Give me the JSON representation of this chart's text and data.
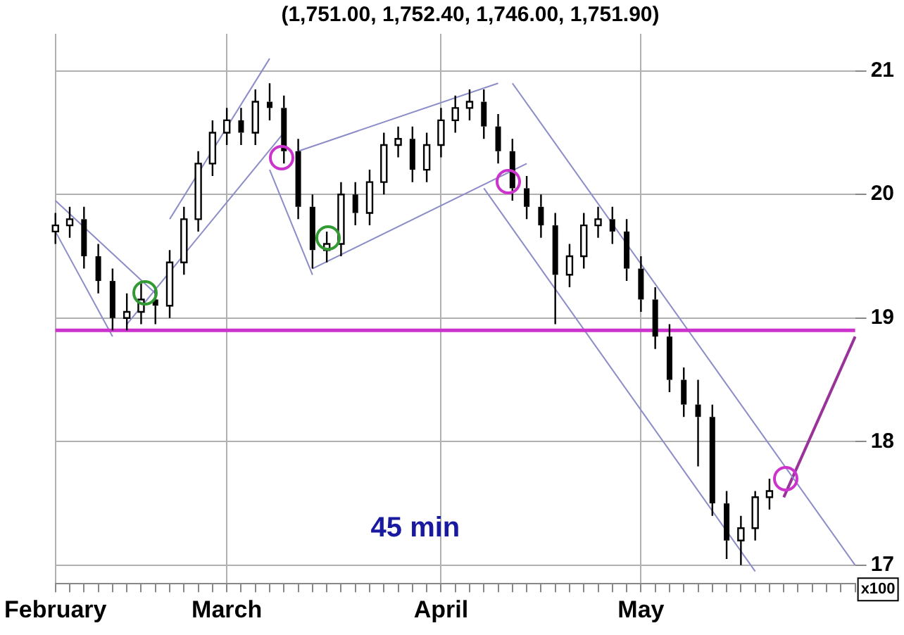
{
  "chart_data": {
    "type": "candlestick",
    "title": "(1,751.00, 1,752.40, 1,746.00, 1,751.90)",
    "categories": [
      "February",
      null,
      null,
      null,
      null,
      null,
      null,
      null,
      null,
      null,
      null,
      null,
      "March",
      null,
      null,
      null,
      null,
      null,
      null,
      null,
      null,
      null,
      null,
      null,
      null,
      null,
      null,
      "April",
      null,
      null,
      null,
      null,
      null,
      null,
      null,
      null,
      null,
      null,
      null,
      null,
      null,
      "May",
      null,
      null,
      null,
      null,
      null,
      null,
      null,
      null,
      null,
      null,
      null,
      null,
      null,
      null,
      null
    ],
    "ohlc": [
      [
        19.7,
        19.85,
        19.6,
        19.75
      ],
      [
        19.75,
        19.9,
        19.65,
        19.8
      ],
      [
        19.8,
        19.9,
        19.4,
        19.5
      ],
      [
        19.5,
        19.6,
        19.2,
        19.3
      ],
      [
        19.3,
        19.4,
        18.9,
        19.0
      ],
      [
        19.0,
        19.2,
        18.9,
        19.05
      ],
      [
        19.05,
        19.3,
        18.95,
        19.15
      ],
      [
        19.15,
        19.25,
        18.95,
        19.1
      ],
      [
        19.1,
        19.55,
        19.0,
        19.45
      ],
      [
        19.45,
        19.9,
        19.35,
        19.8
      ],
      [
        19.8,
        20.35,
        19.7,
        20.25
      ],
      [
        20.25,
        20.6,
        20.15,
        20.5
      ],
      [
        20.5,
        20.7,
        20.4,
        20.6
      ],
      [
        20.6,
        20.7,
        20.4,
        20.5
      ],
      [
        20.5,
        20.85,
        20.4,
        20.75
      ],
      [
        20.75,
        20.9,
        20.6,
        20.7
      ],
      [
        20.7,
        20.8,
        20.25,
        20.35
      ],
      [
        20.35,
        20.45,
        19.8,
        19.9
      ],
      [
        19.9,
        20.0,
        19.4,
        19.55
      ],
      [
        19.55,
        19.7,
        19.45,
        19.6
      ],
      [
        19.6,
        20.1,
        19.5,
        20.0
      ],
      [
        20.0,
        20.1,
        19.75,
        19.85
      ],
      [
        19.85,
        20.2,
        19.75,
        20.1
      ],
      [
        20.1,
        20.5,
        20.0,
        20.4
      ],
      [
        20.4,
        20.55,
        20.3,
        20.45
      ],
      [
        20.45,
        20.55,
        20.1,
        20.2
      ],
      [
        20.2,
        20.5,
        20.1,
        20.4
      ],
      [
        20.4,
        20.7,
        20.3,
        20.6
      ],
      [
        20.6,
        20.8,
        20.5,
        20.7
      ],
      [
        20.7,
        20.85,
        20.6,
        20.75
      ],
      [
        20.75,
        20.85,
        20.45,
        20.55
      ],
      [
        20.55,
        20.65,
        20.25,
        20.35
      ],
      [
        20.35,
        20.45,
        19.95,
        20.05
      ],
      [
        20.05,
        20.15,
        19.8,
        19.9
      ],
      [
        19.9,
        20.0,
        19.65,
        19.75
      ],
      [
        19.75,
        19.85,
        18.95,
        19.35
      ],
      [
        19.35,
        19.6,
        19.25,
        19.5
      ],
      [
        19.5,
        19.85,
        19.4,
        19.75
      ],
      [
        19.75,
        19.9,
        19.65,
        19.8
      ],
      [
        19.8,
        19.9,
        19.6,
        19.7
      ],
      [
        19.7,
        19.8,
        19.3,
        19.4
      ],
      [
        19.4,
        19.5,
        19.05,
        19.15
      ],
      [
        19.15,
        19.25,
        18.75,
        18.85
      ],
      [
        18.85,
        18.95,
        18.4,
        18.5
      ],
      [
        18.5,
        18.6,
        18.2,
        18.3
      ],
      [
        18.3,
        18.5,
        17.8,
        18.2
      ],
      [
        18.2,
        18.3,
        17.4,
        17.5
      ],
      [
        17.5,
        17.6,
        17.05,
        17.2
      ],
      [
        17.2,
        17.4,
        17.0,
        17.3
      ],
      [
        17.3,
        17.6,
        17.2,
        17.55
      ],
      [
        17.55,
        17.7,
        17.45,
        17.6
      ],
      null,
      null,
      null,
      null,
      null,
      null
    ],
    "series": [
      {
        "type": "line",
        "color": "#8c8cc8",
        "values": [
          19.95,
          null,
          null,
          null,
          null,
          null,
          null,
          19.2,
          null,
          null,
          null,
          null,
          null,
          null,
          null,
          null,
          null,
          null,
          null,
          null,
          null,
          null,
          null,
          null,
          null,
          null,
          null,
          null,
          null,
          null,
          null,
          null,
          null,
          null,
          null,
          null,
          null,
          null,
          null,
          null,
          null,
          null,
          null,
          null,
          null,
          null,
          null,
          null,
          null,
          null,
          null,
          null,
          null,
          null,
          null,
          null,
          null
        ]
      },
      {
        "type": "line",
        "color": "#8c8cc8",
        "values": [
          19.7,
          null,
          null,
          null,
          18.85,
          null,
          null,
          null,
          null,
          null,
          null,
          null,
          null,
          null,
          null,
          null,
          null,
          null,
          null,
          null,
          null,
          null,
          null,
          null,
          null,
          null,
          null,
          null,
          null,
          null,
          null,
          null,
          null,
          null,
          null,
          null,
          null,
          null,
          null,
          null,
          null,
          null,
          null,
          null,
          null,
          null,
          null,
          null,
          null,
          null,
          null,
          null,
          null,
          null,
          null,
          null,
          null
        ]
      },
      {
        "type": "line",
        "color": "#8c8cc8",
        "values": [
          null,
          null,
          null,
          null,
          null,
          null,
          null,
          null,
          19.8,
          null,
          null,
          null,
          null,
          null,
          null,
          21.1,
          null,
          null,
          null,
          null,
          null,
          null,
          null,
          null,
          null,
          null,
          null,
          null,
          null,
          null,
          null,
          null,
          null,
          null,
          null,
          null,
          null,
          null,
          null,
          null,
          null,
          null,
          null,
          null,
          null,
          null,
          null,
          null,
          null,
          null,
          null,
          null,
          null,
          null,
          null,
          null,
          null
        ]
      },
      {
        "type": "line",
        "color": "#8c8cc8",
        "values": [
          null,
          null,
          null,
          null,
          null,
          18.95,
          null,
          null,
          null,
          null,
          null,
          null,
          null,
          null,
          null,
          null,
          20.5,
          null,
          null,
          null,
          null,
          null,
          null,
          null,
          null,
          null,
          null,
          null,
          null,
          null,
          null,
          null,
          null,
          null,
          null,
          null,
          null,
          null,
          null,
          null,
          null,
          null,
          null,
          null,
          null,
          null,
          null,
          null,
          null,
          null,
          null,
          null,
          null,
          null,
          null,
          null,
          null
        ]
      },
      {
        "type": "line",
        "color": "#8c8cc8",
        "values": [
          null,
          null,
          null,
          null,
          null,
          null,
          null,
          null,
          null,
          null,
          null,
          null,
          null,
          null,
          null,
          20.2,
          null,
          null,
          19.35,
          null,
          null,
          null,
          null,
          null,
          null,
          null,
          null,
          null,
          null,
          null,
          null,
          null,
          null,
          null,
          null,
          null,
          null,
          null,
          null,
          null,
          null,
          null,
          null,
          null,
          null,
          null,
          null,
          null,
          null,
          null,
          null,
          null,
          null,
          null,
          null,
          null,
          null
        ]
      },
      {
        "type": "line",
        "color": "#8c8cc8",
        "values": [
          null,
          null,
          null,
          null,
          null,
          null,
          null,
          null,
          null,
          null,
          null,
          null,
          null,
          null,
          null,
          null,
          null,
          20.35,
          null,
          null,
          null,
          null,
          null,
          null,
          null,
          null,
          null,
          null,
          null,
          null,
          null,
          20.9,
          null,
          null,
          null,
          null,
          null,
          null,
          null,
          null,
          null,
          null,
          null,
          null,
          null,
          null,
          null,
          null,
          null,
          null,
          null,
          null,
          null,
          null,
          null,
          null,
          null
        ]
      },
      {
        "type": "line",
        "color": "#8c8cc8",
        "values": [
          null,
          null,
          null,
          null,
          null,
          null,
          null,
          null,
          null,
          null,
          null,
          null,
          null,
          null,
          null,
          null,
          null,
          null,
          19.4,
          null,
          null,
          null,
          null,
          null,
          null,
          null,
          null,
          null,
          null,
          null,
          null,
          null,
          null,
          20.25,
          null,
          null,
          null,
          null,
          null,
          null,
          null,
          null,
          null,
          null,
          null,
          null,
          null,
          null,
          null,
          null,
          null,
          null,
          null,
          null,
          null,
          null,
          null
        ]
      },
      {
        "type": "line",
        "color": "#8c8cc8",
        "values": [
          null,
          null,
          null,
          null,
          null,
          null,
          null,
          null,
          null,
          null,
          null,
          null,
          null,
          null,
          null,
          null,
          null,
          null,
          null,
          null,
          null,
          null,
          null,
          null,
          null,
          null,
          null,
          null,
          null,
          null,
          null,
          null,
          20.9,
          null,
          null,
          null,
          null,
          null,
          null,
          null,
          null,
          null,
          null,
          null,
          null,
          null,
          null,
          null,
          null,
          null,
          null,
          null,
          null,
          null,
          null,
          null,
          17.0
        ]
      },
      {
        "type": "line",
        "color": "#8c8cc8",
        "values": [
          null,
          null,
          null,
          null,
          null,
          null,
          null,
          null,
          null,
          null,
          null,
          null,
          null,
          null,
          null,
          null,
          null,
          null,
          null,
          null,
          null,
          null,
          null,
          null,
          null,
          null,
          null,
          null,
          null,
          null,
          20.05,
          null,
          null,
          null,
          null,
          null,
          null,
          null,
          null,
          null,
          null,
          null,
          null,
          null,
          null,
          null,
          null,
          null,
          null,
          16.95,
          null,
          null,
          null,
          null,
          null,
          null,
          null
        ]
      },
      {
        "type": "line",
        "color": "#993399",
        "values": [
          null,
          null,
          null,
          null,
          null,
          null,
          null,
          null,
          null,
          null,
          null,
          null,
          null,
          null,
          null,
          null,
          null,
          null,
          null,
          null,
          null,
          null,
          null,
          null,
          null,
          null,
          null,
          null,
          null,
          null,
          null,
          null,
          null,
          null,
          null,
          null,
          null,
          null,
          null,
          null,
          null,
          null,
          null,
          null,
          null,
          null,
          null,
          null,
          null,
          null,
          null,
          17.55,
          null,
          null,
          null,
          null,
          18.85
        ]
      }
    ],
    "ylim": [
      16.85,
      21.3
    ],
    "yticks": [
      17,
      18,
      19,
      20,
      21
    ],
    "grid": true,
    "ref_lines": [
      {
        "axis": "y",
        "value": 18.9,
        "color": "#cc33cc"
      }
    ],
    "annotations": [
      "45 min",
      "x100"
    ]
  }
}
